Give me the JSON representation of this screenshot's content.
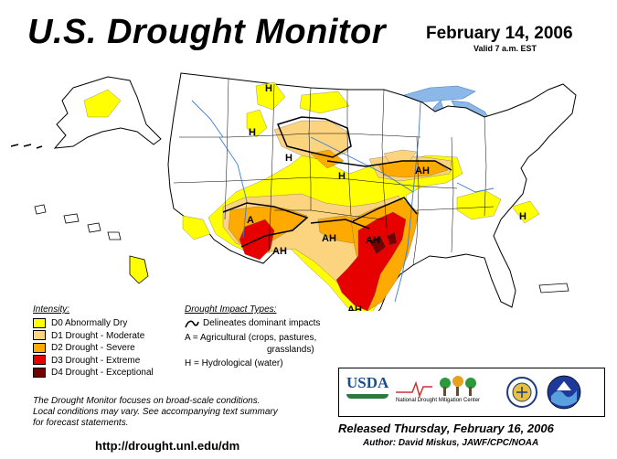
{
  "header": {
    "title": "U.S. Drought Monitor",
    "date": "February 14, 2006",
    "valid": "Valid 7 a.m. EST"
  },
  "colors": {
    "D0": "#ffff00",
    "D1": "#fcd37f",
    "D2": "#ffaa00",
    "D3": "#e60000",
    "D4": "#730000",
    "water": "#8bb8e8",
    "border": "#000000"
  },
  "legend": {
    "intensity_title": "Intensity:",
    "items": [
      {
        "code": "D0",
        "label": "D0 Abnormally Dry"
      },
      {
        "code": "D1",
        "label": "D1 Drought - Moderate"
      },
      {
        "code": "D2",
        "label": "D2 Drought - Severe"
      },
      {
        "code": "D3",
        "label": "D3 Drought - Extreme"
      },
      {
        "code": "D4",
        "label": "D4 Drought - Exceptional"
      }
    ]
  },
  "impacts": {
    "title": "Drought Impact Types:",
    "line_label": "Delineates dominant impacts",
    "a_label_1": "A = Agricultural (crops, pastures,",
    "a_label_2": "grasslands)",
    "h_label": "H = Hydrological (water)"
  },
  "map_labels": {
    "h1": "H",
    "h2": "H",
    "h3": "H",
    "h4": "H",
    "h5": "H",
    "ah1": "AH",
    "a1": "A",
    "ah2": "AH",
    "ah3": "AH",
    "ah4": "AH",
    "ah5": "AH"
  },
  "footnote": {
    "line1": "The Drought Monitor focuses on broad-scale conditions.",
    "line2": "Local conditions may vary.  See accompanying text summary",
    "line3": "for forecast statements."
  },
  "footer": {
    "url": "http://drought.unl.edu/dm",
    "released": "Released Thursday, February 16, 2006",
    "author": "Author:  David Miskus, JAWF/CPC/NOAA"
  },
  "logos": {
    "usda": "USDA",
    "ndmc": "National Drought Mitigation Center"
  }
}
